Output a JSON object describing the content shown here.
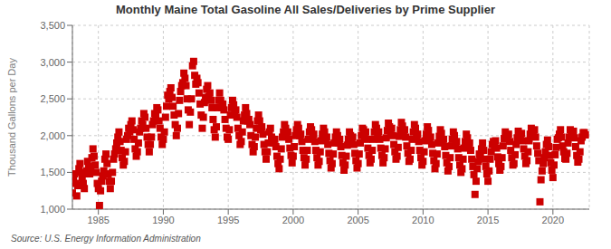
{
  "chart_data": {
    "type": "scatter",
    "title": "Monthly Maine Total Gasoline All Sales/Deliveries by Prime Supplier",
    "ylabel": "Thousand Gallons per Day",
    "annotations": [
      "Source: U.S. Energy Information Administration"
    ],
    "color": "#CC0000",
    "marker": "square",
    "grid": true,
    "xlim": [
      1983,
      2022.8
    ],
    "xticks": [
      1985,
      1990,
      1995,
      2000,
      2005,
      2010,
      2015,
      2020
    ],
    "ylim": [
      1000,
      3500
    ],
    "yticks": [
      {
        "value": 1000,
        "label": "1,000"
      },
      {
        "value": 1500,
        "label": "1,500"
      },
      {
        "value": 2000,
        "label": "2,000"
      },
      {
        "value": 2500,
        "label": "2,500"
      },
      {
        "value": 3000,
        "label": "3,000"
      },
      {
        "value": 3500,
        "label": "3,500"
      }
    ],
    "x": [
      1983,
      1983.0833,
      1983.1667,
      1983.25,
      1983.3333,
      1983.4167,
      1983.5,
      1983.5833,
      1983.6667,
      1983.75,
      1983.8333,
      1983.9167,
      1984,
      1984.0833,
      1984.1667,
      1984.25,
      1984.3333,
      1984.4167,
      1984.5,
      1984.5833,
      1984.6667,
      1984.75,
      1984.8333,
      1984.9167,
      1985,
      1985.0833,
      1985.1667,
      1985.25,
      1985.3333,
      1985.4167,
      1985.5,
      1985.5833,
      1985.6667,
      1985.75,
      1985.8333,
      1985.9167,
      1986,
      1986.0833,
      1986.1667,
      1986.25,
      1986.3333,
      1986.4167,
      1986.5,
      1986.5833,
      1986.6667,
      1986.75,
      1986.8333,
      1986.9167,
      1987,
      1987.0833,
      1987.1667,
      1987.25,
      1987.3333,
      1987.4167,
      1987.5,
      1987.5833,
      1987.6667,
      1987.75,
      1987.8333,
      1987.9167,
      1988,
      1988.0833,
      1988.1667,
      1988.25,
      1988.3333,
      1988.4167,
      1988.5,
      1988.5833,
      1988.6667,
      1988.75,
      1988.8333,
      1988.9167,
      1989,
      1989.0833,
      1989.1667,
      1989.25,
      1989.3333,
      1989.4167,
      1989.5,
      1989.5833,
      1989.6667,
      1989.75,
      1989.8333,
      1989.9167,
      1990,
      1990.0833,
      1990.1667,
      1990.25,
      1990.3333,
      1990.4167,
      1990.5,
      1990.5833,
      1990.6667,
      1990.75,
      1990.8333,
      1990.9167,
      1991,
      1991.0833,
      1991.1667,
      1991.25,
      1991.3333,
      1991.4167,
      1991.5,
      1991.5833,
      1991.6667,
      1991.75,
      1991.8333,
      1991.9167,
      1992,
      1992.0833,
      1992.1667,
      1992.25,
      1992.3333,
      1992.4167,
      1992.5,
      1992.5833,
      1992.6667,
      1992.75,
      1992.8333,
      1992.9167,
      1993,
      1993.0833,
      1993.1667,
      1993.25,
      1993.3333,
      1993.4167,
      1993.5,
      1993.5833,
      1993.6667,
      1993.75,
      1993.8333,
      1993.9167,
      1994,
      1994.0833,
      1994.1667,
      1994.25,
      1994.3333,
      1994.4167,
      1994.5,
      1994.5833,
      1994.6667,
      1994.75,
      1994.8333,
      1994.9167,
      1995,
      1995.0833,
      1995.1667,
      1995.25,
      1995.3333,
      1995.4167,
      1995.5,
      1995.5833,
      1995.6667,
      1995.75,
      1995.8333,
      1995.9167,
      1996,
      1996.0833,
      1996.1667,
      1996.25,
      1996.3333,
      1996.4167,
      1996.5,
      1996.5833,
      1996.6667,
      1996.75,
      1996.8333,
      1996.9167,
      1997,
      1997.0833,
      1997.1667,
      1997.25,
      1997.3333,
      1997.4167,
      1997.5,
      1997.5833,
      1997.6667,
      1997.75,
      1997.8333,
      1997.9167,
      1998,
      1998.0833,
      1998.1667,
      1998.25,
      1998.3333,
      1998.4167,
      1998.5,
      1998.5833,
      1998.6667,
      1998.75,
      1998.8333,
      1998.9167,
      1999,
      1999.0833,
      1999.1667,
      1999.25,
      1999.3333,
      1999.4167,
      1999.5,
      1999.5833,
      1999.6667,
      1999.75,
      1999.8333,
      1999.9167,
      2000,
      2000.0833,
      2000.1667,
      2000.25,
      2000.3333,
      2000.4167,
      2000.5,
      2000.5833,
      2000.6667,
      2000.75,
      2000.8333,
      2000.9167,
      2001,
      2001.0833,
      2001.1667,
      2001.25,
      2001.3333,
      2001.4167,
      2001.5,
      2001.5833,
      2001.6667,
      2001.75,
      2001.8333,
      2001.9167,
      2002,
      2002.0833,
      2002.1667,
      2002.25,
      2002.3333,
      2002.4167,
      2002.5,
      2002.5833,
      2002.6667,
      2002.75,
      2002.8333,
      2002.9167,
      2003,
      2003.0833,
      2003.1667,
      2003.25,
      2003.3333,
      2003.4167,
      2003.5,
      2003.5833,
      2003.6667,
      2003.75,
      2003.8333,
      2003.9167,
      2004,
      2004.0833,
      2004.1667,
      2004.25,
      2004.3333,
      2004.4167,
      2004.5,
      2004.5833,
      2004.6667,
      2004.75,
      2004.8333,
      2004.9167,
      2005,
      2005.0833,
      2005.1667,
      2005.25,
      2005.3333,
      2005.4167,
      2005.5,
      2005.5833,
      2005.6667,
      2005.75,
      2005.8333,
      2005.9167,
      2006,
      2006.0833,
      2006.1667,
      2006.25,
      2006.3333,
      2006.4167,
      2006.5,
      2006.5833,
      2006.6667,
      2006.75,
      2006.8333,
      2006.9167,
      2007,
      2007.0833,
      2007.1667,
      2007.25,
      2007.3333,
      2007.4167,
      2007.5,
      2007.5833,
      2007.6667,
      2007.75,
      2007.8333,
      2007.9167,
      2008,
      2008.0833,
      2008.1667,
      2008.25,
      2008.3333,
      2008.4167,
      2008.5,
      2008.5833,
      2008.6667,
      2008.75,
      2008.8333,
      2008.9167,
      2009,
      2009.0833,
      2009.1667,
      2009.25,
      2009.3333,
      2009.4167,
      2009.5,
      2009.5833,
      2009.6667,
      2009.75,
      2009.8333,
      2009.9167,
      2010,
      2010.0833,
      2010.1667,
      2010.25,
      2010.3333,
      2010.4167,
      2010.5,
      2010.5833,
      2010.6667,
      2010.75,
      2010.8333,
      2010.9167,
      2011,
      2011.0833,
      2011.1667,
      2011.25,
      2011.3333,
      2011.4167,
      2011.5,
      2011.5833,
      2011.6667,
      2011.75,
      2011.8333,
      2011.9167,
      2012,
      2012.0833,
      2012.1667,
      2012.25,
      2012.3333,
      2012.4167,
      2012.5,
      2012.5833,
      2012.6667,
      2012.75,
      2012.8333,
      2012.9167,
      2013,
      2013.0833,
      2013.1667,
      2013.25,
      2013.3333,
      2013.4167,
      2013.5,
      2013.5833,
      2013.6667,
      2013.75,
      2013.8333,
      2013.9167,
      2014,
      2014.0833,
      2014.1667,
      2014.25,
      2014.3333,
      2014.4167,
      2014.5,
      2014.5833,
      2014.6667,
      2014.75,
      2014.8333,
      2014.9167,
      2015,
      2015.0833,
      2015.1667,
      2015.25,
      2015.3333,
      2015.4167,
      2015.5,
      2015.5833,
      2015.6667,
      2015.75,
      2015.8333,
      2015.9167,
      2016,
      2016.0833,
      2016.1667,
      2016.25,
      2016.3333,
      2016.4167,
      2016.5,
      2016.5833,
      2016.6667,
      2016.75,
      2016.8333,
      2016.9167,
      2017,
      2017.0833,
      2017.1667,
      2017.25,
      2017.3333,
      2017.4167,
      2017.5,
      2017.5833,
      2017.6667,
      2017.75,
      2017.8333,
      2017.9167,
      2018,
      2018.0833,
      2018.1667,
      2018.25,
      2018.3333,
      2018.4167,
      2018.5,
      2018.5833,
      2018.6667,
      2018.75,
      2018.8333,
      2018.9167,
      2019,
      2019.0833,
      2019.1667,
      2019.25,
      2019.3333,
      2019.4167,
      2019.5,
      2019.5833,
      2019.6667,
      2019.75,
      2019.8333,
      2019.9167,
      2020,
      2020.0833,
      2020.1667,
      2020.25,
      2020.3333,
      2020.4167,
      2020.5,
      2020.5833,
      2020.6667,
      2020.75,
      2020.8333,
      2020.9167,
      2021,
      2021.0833,
      2021.1667,
      2021.25,
      2021.3333,
      2021.4167,
      2021.5,
      2021.5833,
      2021.6667,
      2021.75,
      2021.8333,
      2021.9167,
      2022,
      2022.0833,
      2022.1667,
      2022.25,
      2022.3333,
      2022.4167,
      2022.5
    ],
    "values": [
      1220,
      1400,
      1480,
      1350,
      1180,
      1320,
      1550,
      1620,
      1500,
      1420,
      1350,
      1280,
      1480,
      1520,
      1650,
      1580,
      1480,
      1560,
      1700,
      1820,
      1720,
      1600,
      1500,
      1350,
      1280,
      1050,
      1250,
      1380,
      1450,
      1520,
      1680,
      1750,
      1620,
      1480,
      1380,
      1280,
      1380,
      1500,
      1680,
      1750,
      1820,
      1900,
      1980,
      2050,
      1920,
      1800,
      1700,
      1600,
      1650,
      1780,
      1950,
      2000,
      2100,
      2050,
      2150,
      2200,
      2080,
      1950,
      1820,
      1720,
      1780,
      1900,
      2050,
      2100,
      2200,
      2150,
      2300,
      2250,
      2100,
      1980,
      1880,
      1780,
      1880,
      1980,
      2150,
      2200,
      2300,
      2280,
      2380,
      2350,
      2200,
      2100,
      1980,
      1880,
      1950,
      2050,
      2250,
      2400,
      2550,
      2500,
      2600,
      2650,
      2520,
      2400,
      2280,
      2150,
      2000,
      2100,
      2300,
      2480,
      2600,
      2680,
      2720,
      2850,
      2780,
      2680,
      2500,
      2350,
      2150,
      2320,
      2500,
      2950,
      3010,
      2820,
      2700,
      2780,
      2720,
      2580,
      2430,
      2280,
      2100,
      2250,
      2450,
      2520,
      2630,
      2680,
      2530,
      2580,
      2480,
      2380,
      2220,
      2080,
      1980,
      2120,
      2380,
      2480,
      2580,
      2480,
      2380,
      2430,
      2350,
      2220,
      2100,
      1980,
      1950,
      2080,
      2280,
      2380,
      2480,
      2420,
      2300,
      2350,
      2250,
      2100,
      2000,
      1880,
      1920,
      2050,
      2200,
      2280,
      2380,
      2300,
      2200,
      2220,
      2150,
      2000,
      1880,
      1780,
      1850,
      1980,
      2100,
      2200,
      2280,
      2200,
      2080,
      2120,
      2020,
      1880,
      1780,
      1680,
      1780,
      1900,
      2050,
      2100,
      1980,
      1920,
      1900,
      1950,
      1850,
      1720,
      1620,
      1550,
      1680,
      1820,
      1980,
      2050,
      2150,
      2100,
      2000,
      2050,
      1950,
      1830,
      1730,
      1630,
      1720,
      1850,
      2000,
      2080,
      2150,
      2100,
      2000,
      2020,
      1920,
      1800,
      1700,
      1600,
      1680,
      1800,
      1950,
      2050,
      2120,
      2080,
      1980,
      2020,
      1920,
      1800,
      1700,
      1600,
      1650,
      1780,
      1930,
      2020,
      2100,
      2050,
      1950,
      1980,
      1880,
      1760,
      1660,
      1560,
      1620,
      1750,
      1900,
      1980,
      2050,
      2000,
      1900,
      1950,
      1850,
      1730,
      1630,
      1530,
      1600,
      1720,
      1870,
      1950,
      2050,
      2000,
      1920,
      1980,
      1880,
      1760,
      1660,
      1560,
      1620,
      1750,
      1900,
      2000,
      2100,
      2080,
      1980,
      2050,
      1950,
      1830,
      1730,
      1630,
      1680,
      1800,
      1950,
      2050,
      2150,
      2100,
      2000,
      2050,
      1950,
      1830,
      1730,
      1630,
      1700,
      1820,
      1970,
      2070,
      2170,
      2120,
      2050,
      2100,
      2000,
      1880,
      1780,
      1680,
      1720,
      1840,
      1990,
      2080,
      2180,
      2130,
      2050,
      2080,
      1980,
      1860,
      1760,
      1650,
      1680,
      1800,
      1950,
      2050,
      2150,
      2100,
      1980,
      2020,
      1920,
      1800,
      1700,
      1600,
      1650,
      1780,
      1930,
      2020,
      2120,
      2070,
      1950,
      1980,
      1880,
      1760,
      1660,
      1550,
      1620,
      1750,
      1900,
      1990,
      2080,
      2030,
      1920,
      1950,
      1850,
      1730,
      1630,
      1520,
      1580,
      1700,
      1860,
      1950,
      2050,
      2000,
      1880,
      1920,
      1820,
      1700,
      1600,
      1500,
      1550,
      1680,
      1830,
      1920,
      2020,
      1970,
      1860,
      1900,
      1800,
      1680,
      1580,
      1470,
      1200,
      1380,
      1550,
      1650,
      1750,
      1730,
      1820,
      1900,
      1800,
      1680,
      1580,
      1480,
      1380,
      1520,
      1680,
      1780,
      1880,
      1920,
      1870,
      1930,
      1830,
      1710,
      1620,
      1530,
      1580,
      1700,
      1860,
      1960,
      2050,
      2000,
      1970,
      2020,
      1920,
      1800,
      1700,
      1600,
      1620,
      1740,
      1880,
      1970,
      2060,
      2020,
      1980,
      2030,
      1930,
      1820,
      1720,
      1620,
      1660,
      1780,
      1930,
      2020,
      2100,
      2060,
      2030,
      2080,
      1980,
      1860,
      1760,
      1660,
      1100,
      1400,
      1520,
      1620,
      1700,
      1780,
      1880,
      1940,
      1850,
      1730,
      1630,
      1530,
      1430,
      1600,
      1740,
      1840,
      1950,
      1970,
      2020,
      2080,
      1980,
      1860,
      1780,
      1690,
      1680,
      1760,
      1900,
      1980,
      2080,
      2050,
      2020,
      2060,
      1970,
      1850,
      1730,
      1640,
      1680,
      1780,
      1930,
      1980,
      2040,
      2040,
      2010
    ]
  }
}
